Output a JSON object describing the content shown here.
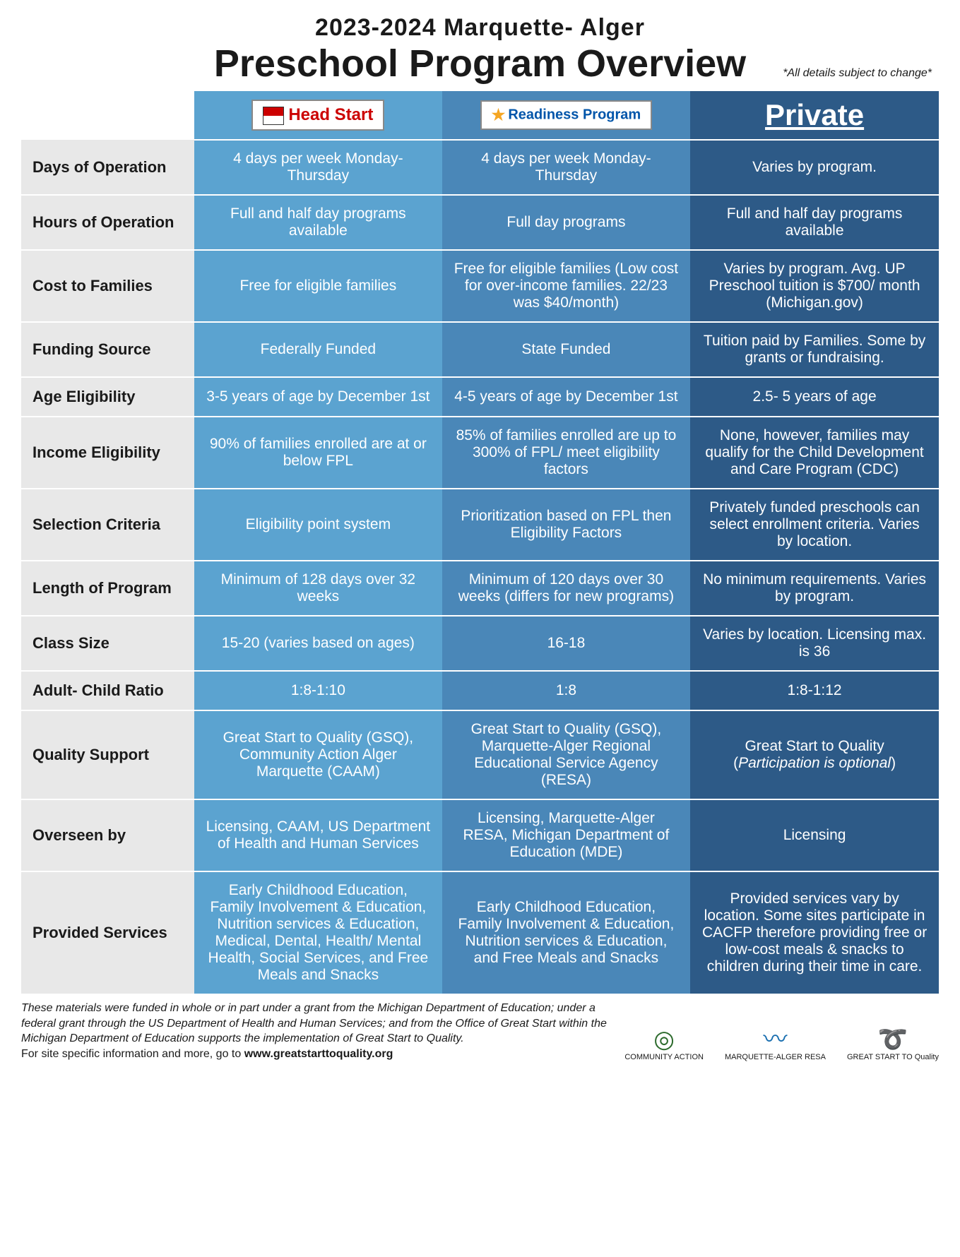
{
  "title": {
    "super": "2023-2024 Marquette- Alger",
    "main": "Preschool Program Overview",
    "note": "*All details subject to change*"
  },
  "columns": {
    "a_label": "Head Start",
    "b_label": "Readiness Program",
    "c_label": "Private"
  },
  "colors": {
    "label_bg": "#e8e8e8",
    "col_a": "#5ba3d0",
    "col_b": "#4a87b8",
    "col_c": "#2d5a87",
    "text_light": "#ffffff"
  },
  "rows": [
    {
      "label": "Days of Operation",
      "a": "4 days per week Monday-Thursday",
      "b": "4 days per week Monday-Thursday",
      "c": "Varies by program."
    },
    {
      "label": "Hours of Operation",
      "a": "Full and half day programs available",
      "b": "Full day programs",
      "c": "Full and half day programs available"
    },
    {
      "label": "Cost to Families",
      "a": "Free for eligible families",
      "b": "Free for eligible families (Low cost for over-income families. 22/23 was $40/month)",
      "c": "Varies by program. Avg. UP Preschool tuition is $700/ month (Michigan.gov)"
    },
    {
      "label": "Funding Source",
      "a": "Federally Funded",
      "b": "State Funded",
      "c": "Tuition paid by Families. Some by grants or fundraising."
    },
    {
      "label": "Age Eligibility",
      "a": "3-5 years of age by December 1st",
      "b": "4-5 years of age by December 1st",
      "c": "2.5- 5 years of age"
    },
    {
      "label": "Income Eligibility",
      "a": "90% of families enrolled are at or below FPL",
      "b": "85% of families enrolled are up to 300% of FPL/ meet eligibility factors",
      "c": "None, however, families may qualify for the Child Development and Care Program (CDC)"
    },
    {
      "label": "Selection Criteria",
      "a": "Eligibility point system",
      "b": "Prioritization based on FPL then Eligibility Factors",
      "c": "Privately funded preschools  can select enrollment criteria. Varies by location."
    },
    {
      "label": "Length of Program",
      "a": "Minimum of 128 days over 32 weeks",
      "b": "Minimum of 120 days over 30 weeks (differs for new programs)",
      "c": "No minimum requirements. Varies by program."
    },
    {
      "label": "Class Size",
      "a": "15-20 (varies based on ages)",
      "b": "16-18",
      "c": "Varies by location. Licensing max. is 36"
    },
    {
      "label": "Adult- Child Ratio",
      "a": "1:8-1:10",
      "b": "1:8",
      "c": "1:8-1:12"
    },
    {
      "label": "Quality Support",
      "a": "Great Start to Quality (GSQ), Community Action Alger Marquette (CAAM)",
      "b": "Great Start to Quality (GSQ), Marquette-Alger Regional Educational Service Agency (RESA)",
      "c": "Great Start to Quality (Participation is optional)",
      "c_italic_part": true
    },
    {
      "label": "Overseen by",
      "a": "Licensing, CAAM, US Department of Health and Human Services",
      "b": "Licensing, Marquette-Alger RESA, Michigan Department of Education (MDE)",
      "c": "Licensing"
    },
    {
      "label": "Provided Services",
      "a": "Early Childhood Education, Family Involvement & Education, Nutrition services & Education, Medical, Dental, Health/ Mental Health, Social Services, and Free Meals and Snacks",
      "b": "Early Childhood Education, Family Involvement & Education, Nutrition services & Education, and Free Meals and Snacks",
      "c": "Provided services vary by location. Some sites participate in CACFP therefore providing free or low-cost meals & snacks to children during their time in care."
    }
  ],
  "footer": {
    "funding": "These materials were funded in whole or in part  under a grant from the Michigan Department of Education; under a federal grant through the US Department of Health and Human Services; and from the Office of Great Start within the Michigan Department of Education supports the implementation of Great Start to Quality.",
    "more_prefix": "For site specific information and more, go to ",
    "more_url": "www.greatstarttoquality.org",
    "logo_ca": "COMMUNITY ACTION",
    "logo_resa": "MARQUETTE-ALGER RESA",
    "logo_gsq": "GREAT START TO Quality"
  }
}
